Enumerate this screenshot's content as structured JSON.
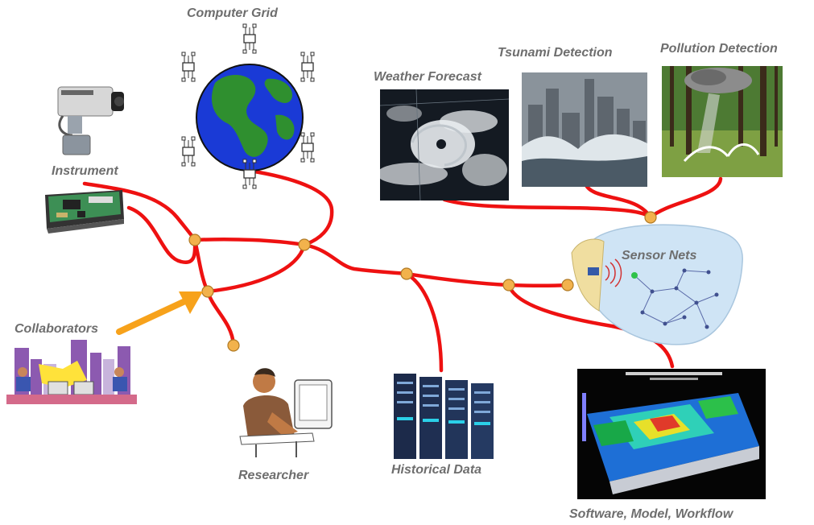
{
  "labels": {
    "computer_grid": "Computer Grid",
    "tsunami": "Tsunami Detection",
    "pollution": "Pollution Detection",
    "weather": "Weather Forecast",
    "instrument": "Instrument",
    "sensor_nets": "Sensor Nets",
    "collaborators": "Collaborators",
    "researcher": "Researcher",
    "historical": "Historical Data",
    "software": "Software, Model, Workflow"
  },
  "colors": {
    "wire": "#ee1111",
    "node": "#f2b24c",
    "arrow": "#f7a21b",
    "label": "#6e6e6e",
    "ocean": "#1a3ad6",
    "land": "#2f8f2f"
  }
}
